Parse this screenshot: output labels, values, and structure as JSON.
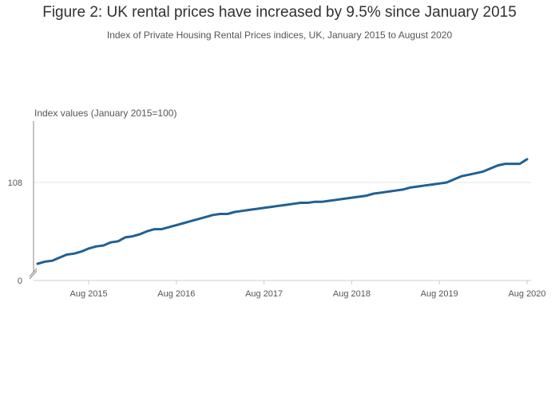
{
  "chart_data": {
    "type": "line",
    "title": "Figure 2: UK rental prices have increased by 9.5% since January 2015",
    "subtitle": "Index of Private Housing Rental Prices indices, UK, January 2015 to August 2020",
    "ylabel": "Index values (January 2015=100)",
    "xlabel": "",
    "y_axis_break": true,
    "ylim": [
      0,
      109.7
    ],
    "yticks": [
      "0",
      "108"
    ],
    "xticks": [
      "Aug 2015",
      "Aug 2016",
      "Aug 2017",
      "Aug 2018",
      "Aug 2019",
      "Aug 2020"
    ],
    "grid": true,
    "line_color": "#206095",
    "series": [
      {
        "x": [
          "Jan 2015",
          "Feb 2015",
          "Mar 2015",
          "Apr 2015",
          "May 2015",
          "Jun 2015",
          "Jul 2015",
          "Aug 2015",
          "Sep 2015",
          "Oct 2015",
          "Nov 2015",
          "Dec 2015",
          "Jan 2016",
          "Feb 2016",
          "Mar 2016",
          "Apr 2016",
          "May 2016",
          "Jun 2016",
          "Jul 2016",
          "Aug 2016",
          "Sep 2016",
          "Oct 2016",
          "Nov 2016",
          "Dec 2016",
          "Jan 2017",
          "Feb 2017",
          "Mar 2017",
          "Apr 2017",
          "May 2017",
          "Jun 2017",
          "Jul 2017",
          "Aug 2017",
          "Sep 2017",
          "Oct 2017",
          "Nov 2017",
          "Dec 2017",
          "Jan 2018",
          "Feb 2018",
          "Mar 2018",
          "Apr 2018",
          "May 2018",
          "Jun 2018",
          "Jul 2018",
          "Aug 2018",
          "Sep 2018",
          "Oct 2018",
          "Nov 2018",
          "Dec 2018",
          "Jan 2019",
          "Feb 2019",
          "Mar 2019",
          "Apr 2019",
          "May 2019",
          "Jun 2019",
          "Jul 2019",
          "Aug 2019",
          "Sep 2019",
          "Oct 2019",
          "Nov 2019",
          "Dec 2019",
          "Jan 2020",
          "Feb 2020",
          "Mar 2020",
          "Apr 2020",
          "May 2020",
          "Jun 2020",
          "Jul 2020",
          "Aug 2020"
        ],
        "values": [
          100.0,
          100.2,
          100.3,
          100.6,
          100.9,
          101.0,
          101.2,
          101.5,
          101.7,
          101.8,
          102.1,
          102.2,
          102.6,
          102.7,
          102.9,
          103.2,
          103.4,
          103.4,
          103.6,
          103.8,
          104.0,
          104.2,
          104.4,
          104.6,
          104.8,
          104.9,
          104.9,
          105.1,
          105.2,
          105.3,
          105.4,
          105.5,
          105.6,
          105.7,
          105.8,
          105.9,
          106.0,
          106.0,
          106.1,
          106.1,
          106.2,
          106.3,
          106.4,
          106.5,
          106.6,
          106.7,
          106.9,
          107.0,
          107.1,
          107.2,
          107.3,
          107.5,
          107.6,
          107.7,
          107.8,
          107.9,
          108.0,
          108.2,
          108.4,
          108.5,
          108.6,
          108.7,
          108.9,
          109.1,
          109.2,
          109.2,
          109.2,
          109.5
        ]
      }
    ]
  }
}
